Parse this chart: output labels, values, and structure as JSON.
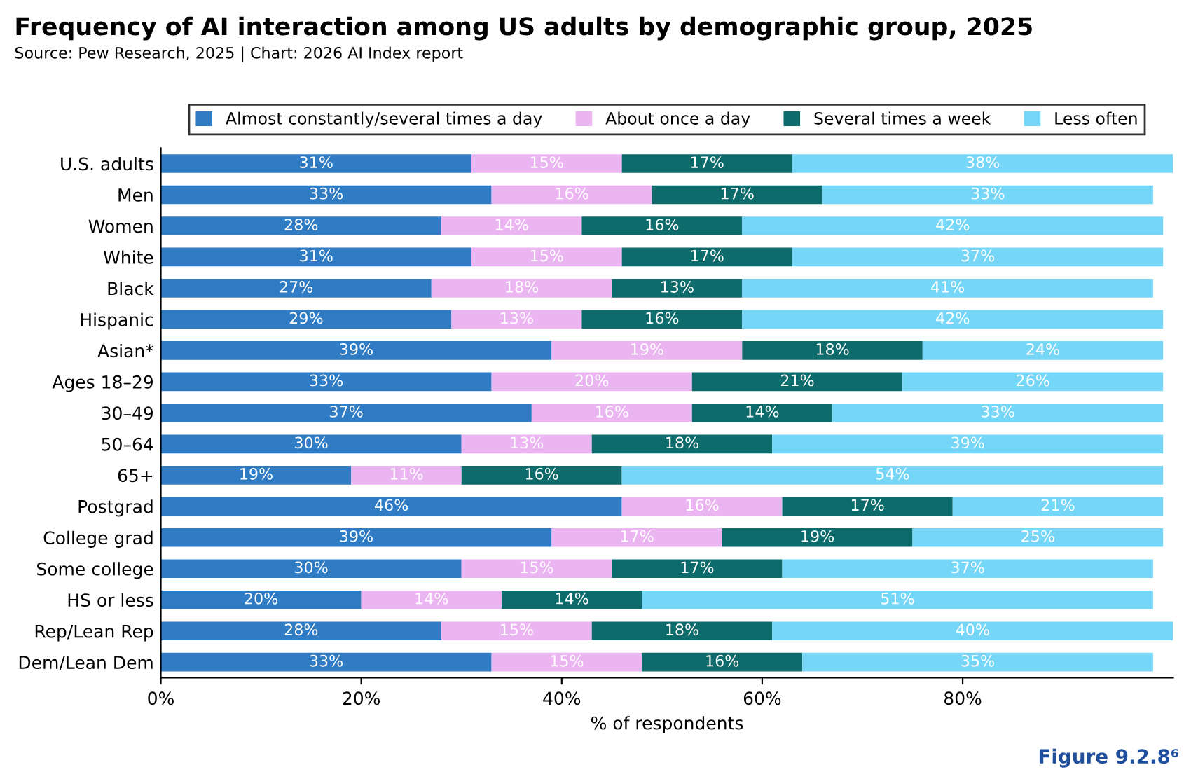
{
  "chart_data": {
    "type": "bar",
    "orientation": "horizontal",
    "stacked": true,
    "title": "Frequency of AI interaction among US adults by demographic group, 2025",
    "subtitle": "Source: Pew Research, 2025 | Chart: 2026 AI Index report",
    "xlabel": "% of respondents",
    "annotations": [
      "Figure 9.2.8⁶"
    ],
    "categories": [
      "U.S. adults",
      "Men",
      "Women",
      "White",
      "Black",
      "Hispanic",
      "Asian*",
      "Ages 18–29",
      "30–49",
      "50–64",
      "65+",
      "Postgrad",
      "College grad",
      "Some college",
      "HS or less",
      "Rep/Lean Rep",
      "Dem/Lean Dem"
    ],
    "series": [
      {
        "name": "Almost constantly/several times a day",
        "color": "#2f7cc4",
        "values": [
          31,
          33,
          28,
          31,
          27,
          29,
          39,
          33,
          37,
          30,
          19,
          46,
          39,
          30,
          20,
          28,
          33
        ],
        "value_labels": [
          "31%",
          "33%",
          "28%",
          "31%",
          "27%",
          "29%",
          "39%",
          "33%",
          "37%",
          "30%",
          "19%",
          "46%",
          "39%",
          "30%",
          "20%",
          "28%",
          "33%"
        ]
      },
      {
        "name": "About once a day",
        "color": "#ebb5f2",
        "values": [
          15,
          16,
          14,
          15,
          18,
          13,
          19,
          20,
          16,
          13,
          11,
          16,
          17,
          15,
          14,
          15,
          15
        ],
        "value_labels": [
          "15%",
          "16%",
          "14%",
          "15%",
          "18%",
          "13%",
          "19%",
          "20%",
          "16%",
          "13%",
          "11%",
          "16%",
          "17%",
          "15%",
          "14%",
          "15%",
          "15%"
        ]
      },
      {
        "name": "Several times a week",
        "color": "#0e6b6c",
        "values": [
          17,
          17,
          16,
          17,
          13,
          16,
          18,
          21,
          14,
          18,
          16,
          17,
          19,
          17,
          14,
          18,
          16
        ],
        "value_labels": [
          "17%",
          "17%",
          "16%",
          "17%",
          "13%",
          "16%",
          "18%",
          "21%",
          "14%",
          "18%",
          "16%",
          "17%",
          "19%",
          "17%",
          "14%",
          "18%",
          "16%"
        ]
      },
      {
        "name": "Less often",
        "color": "#76d6f8",
        "values": [
          38,
          33,
          42,
          37,
          41,
          42,
          24,
          26,
          33,
          39,
          54,
          21,
          25,
          37,
          51,
          40,
          35
        ],
        "value_labels": [
          "38%",
          "33%",
          "42%",
          "37%",
          "41%",
          "42%",
          "24%",
          "26%",
          "33%",
          "39%",
          "54%",
          "21%",
          "25%",
          "37%",
          "51%",
          "40%",
          "35%"
        ]
      }
    ],
    "xlim": [
      0,
      101
    ],
    "xticks": [
      {
        "value": 0,
        "label": "0%"
      },
      {
        "value": 20,
        "label": "20%"
      },
      {
        "value": 40,
        "label": "40%"
      },
      {
        "value": 60,
        "label": "60%"
      },
      {
        "value": 80,
        "label": "80%"
      }
    ],
    "legend": "top"
  }
}
